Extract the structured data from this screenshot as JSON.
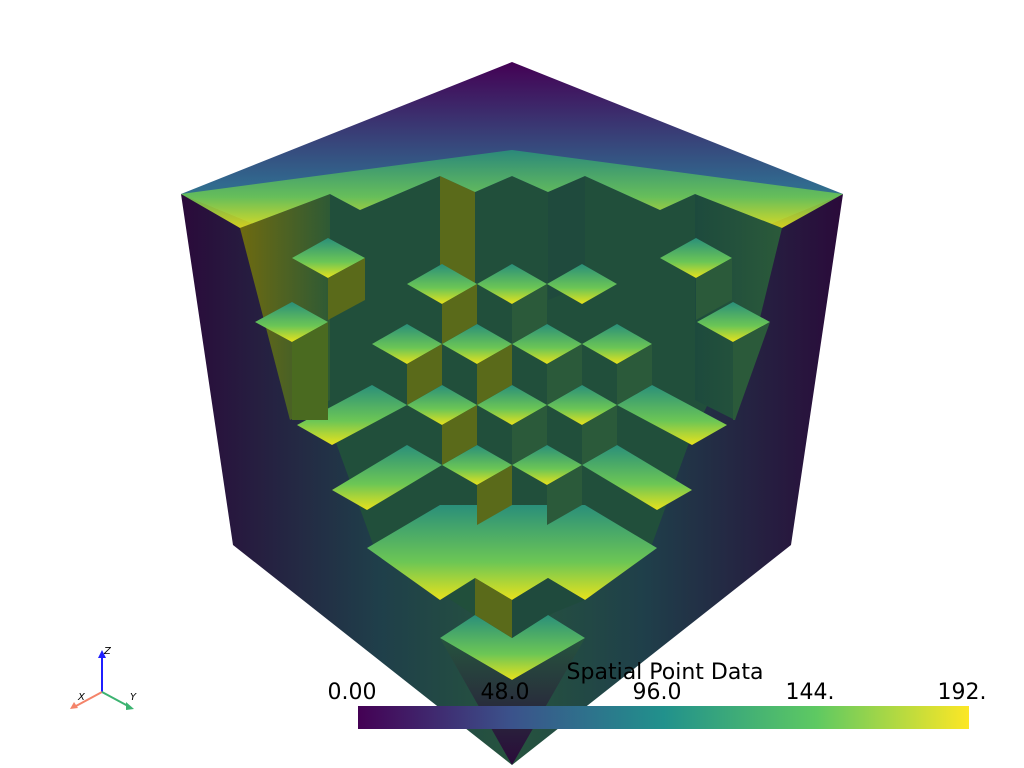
{
  "scalar_bar": {
    "title": "Spatial Point Data",
    "ticks": [
      "0.00",
      "48.0",
      "96.0",
      "144.",
      "192."
    ],
    "colormap": [
      "#440154",
      "#3b528b",
      "#21918c",
      "#5ec962",
      "#fde725"
    ]
  },
  "axes": {
    "x_label": "X",
    "y_label": "Y",
    "z_label": "Z",
    "x_color": "#f4846a",
    "y_color": "#3cb371",
    "z_color": "#1f1fff"
  },
  "scene": {
    "background": "#ffffff",
    "object": "voxel-cube-with-stepped-corner-cut"
  }
}
